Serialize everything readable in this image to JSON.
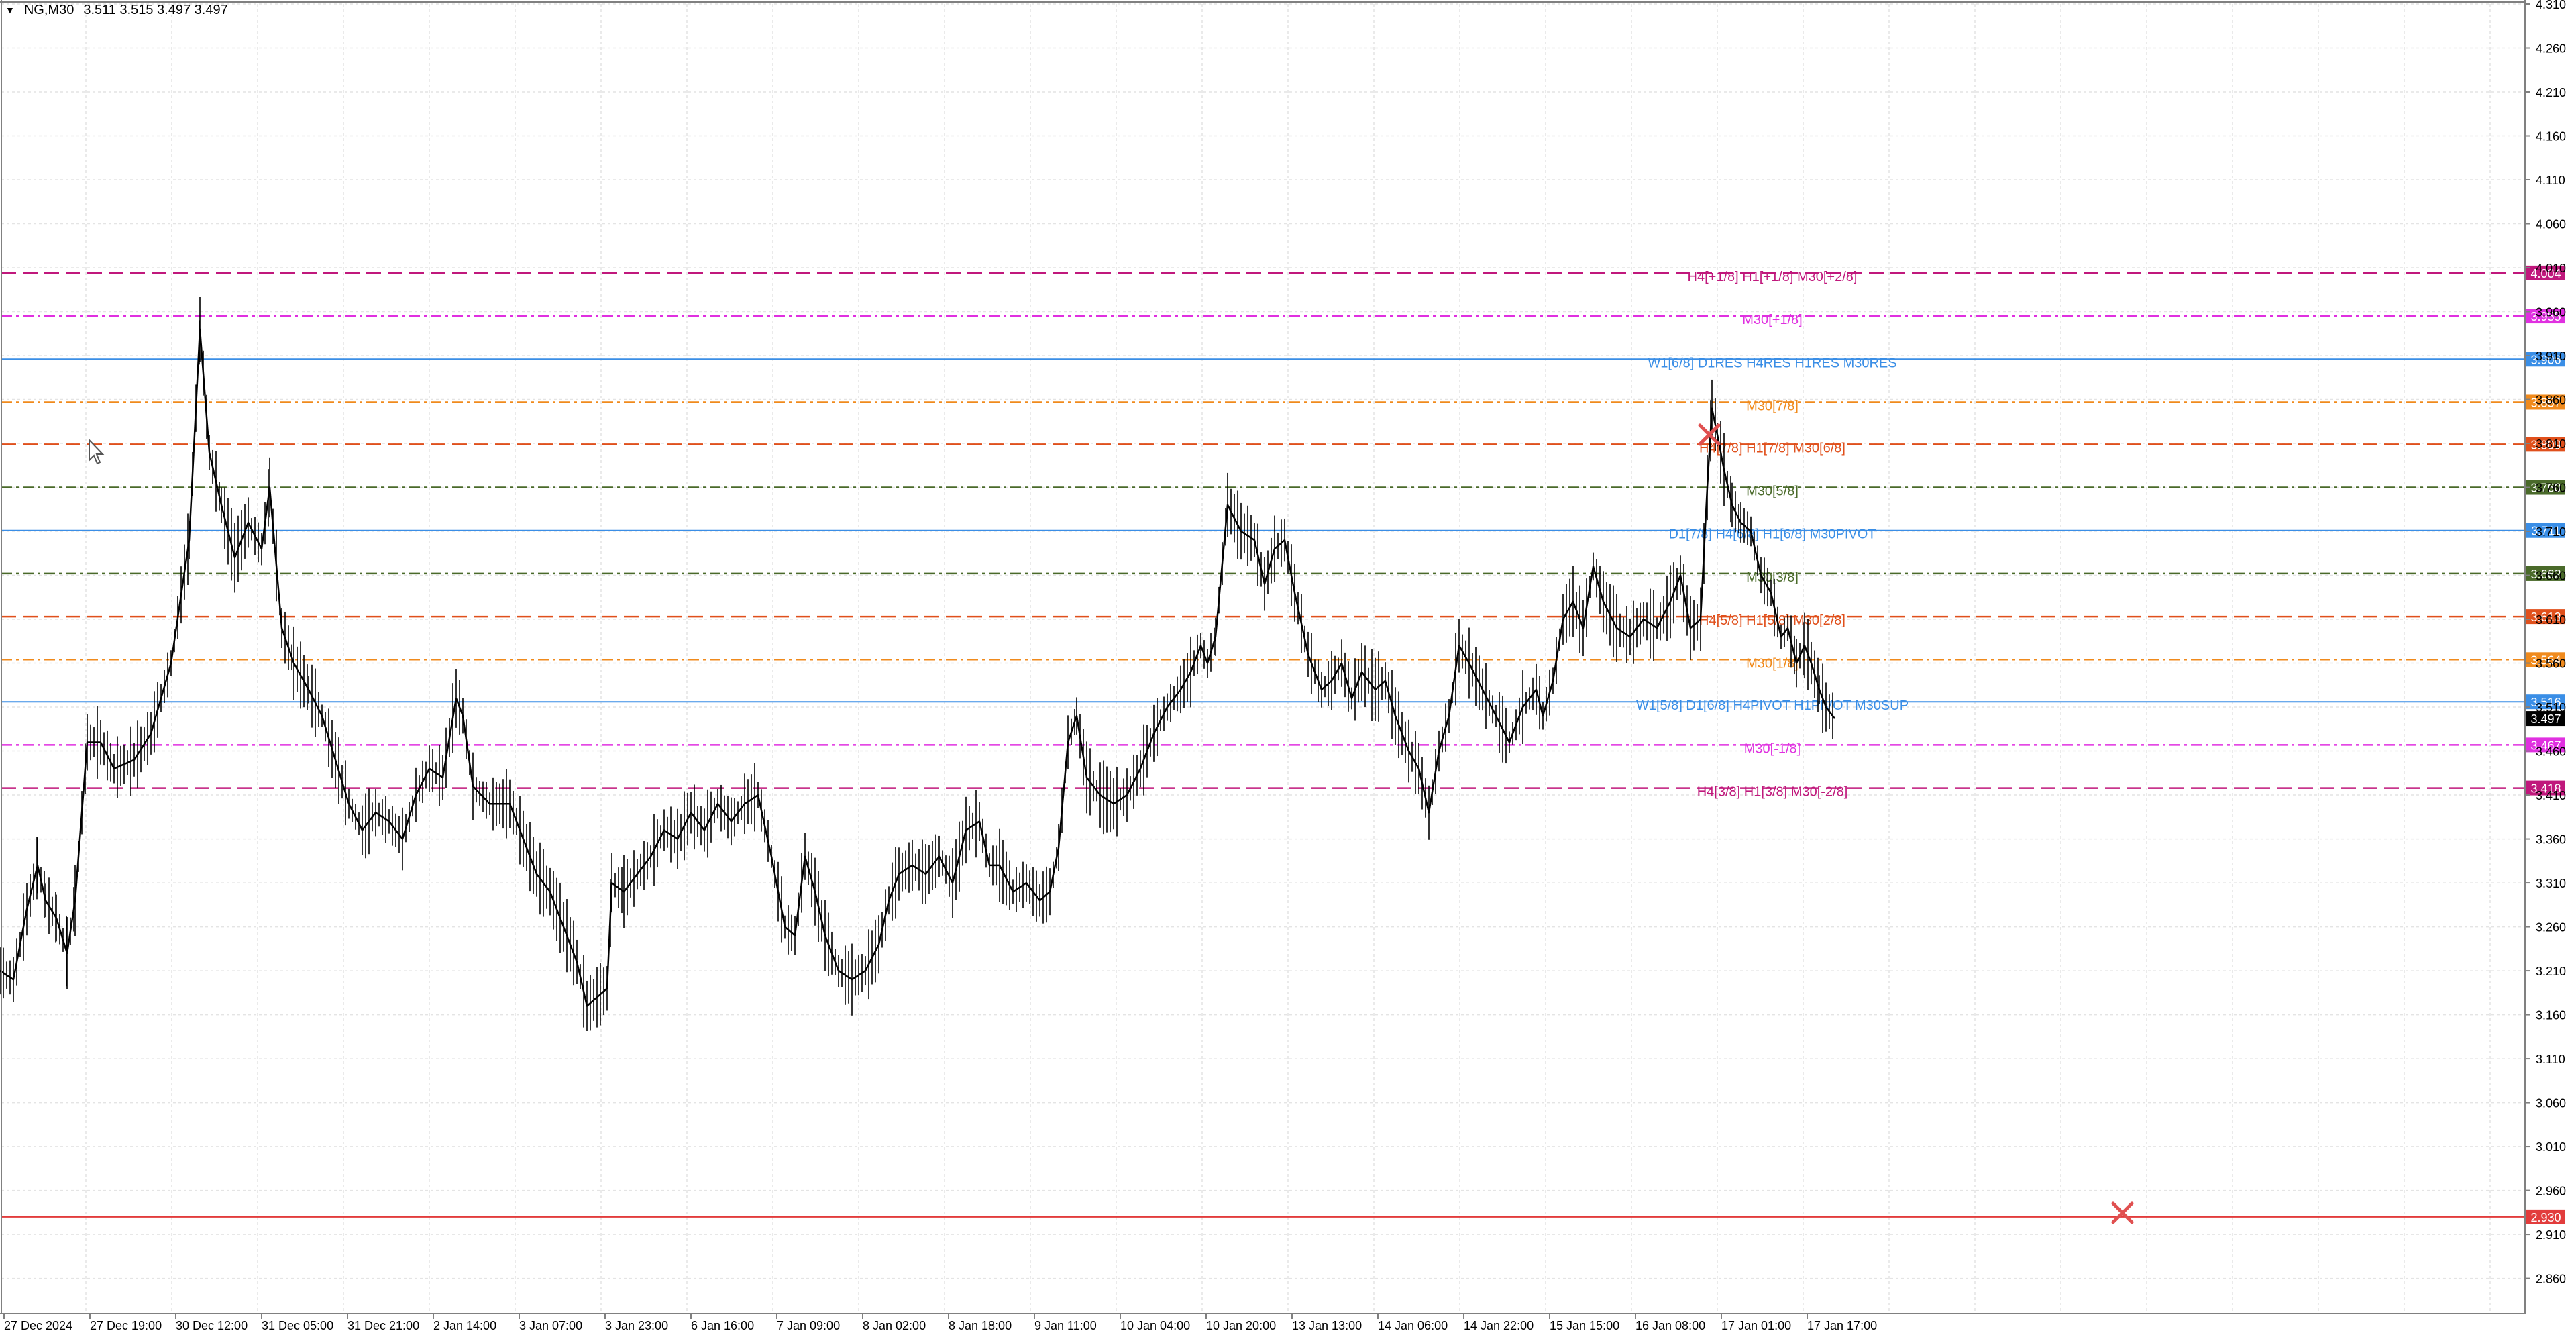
{
  "header": {
    "symbol": "NG,M30",
    "ohlc": "3.511 3.515 3.497 3.497"
  },
  "icons": {
    "dropdown": "triangle-down-icon",
    "cursor": "mouse-pointer-icon",
    "marker": "close-x-icon"
  },
  "colors": {
    "background": "#ffffff",
    "grid": "#e4e4e4",
    "candle": "#000000",
    "axis": "#808080",
    "current_price_bg": "#000000"
  },
  "chart_data": {
    "type": "candlestick",
    "symbol": "NG",
    "timeframe": "M30",
    "ylim": [
      2.82,
      4.31
    ],
    "y_ticks": [
      "4.310",
      "4.260",
      "4.210",
      "4.160",
      "4.110",
      "4.060",
      "4.010",
      "3.960",
      "3.910",
      "3.860",
      "3.810",
      "3.760",
      "3.710",
      "3.660",
      "3.610",
      "3.560",
      "3.510",
      "3.460",
      "3.410",
      "3.360",
      "3.310",
      "3.260",
      "3.210",
      "3.160",
      "3.110",
      "3.060",
      "3.010",
      "2.960",
      "2.910",
      "2.860"
    ],
    "x_ticks": [
      "27 Dec 2024",
      "27 Dec 19:00",
      "30 Dec 12:00",
      "31 Dec 05:00",
      "31 Dec 21:00",
      "2 Jan 14:00",
      "3 Jan 07:00",
      "3 Jan 23:00",
      "6 Jan 16:00",
      "7 Jan 09:00",
      "8 Jan 02:00",
      "8 Jan 18:00",
      "9 Jan 11:00",
      "10 Jan 04:00",
      "10 Jan 20:00",
      "13 Jan 13:00",
      "14 Jan 06:00",
      "14 Jan 22:00",
      "15 Jan 15:00",
      "16 Jan 08:00",
      "17 Jan 01:00",
      "17 Jan 17:00"
    ],
    "price_path": [
      [
        0,
        3.21
      ],
      [
        20,
        3.2
      ],
      [
        40,
        3.28
      ],
      [
        56,
        3.33
      ],
      [
        68,
        3.29
      ],
      [
        84,
        3.27
      ],
      [
        100,
        3.23
      ],
      [
        112,
        3.29
      ],
      [
        130,
        3.47
      ],
      [
        150,
        3.47
      ],
      [
        170,
        3.44
      ],
      [
        200,
        3.45
      ],
      [
        225,
        3.48
      ],
      [
        255,
        3.56
      ],
      [
        282,
        3.7
      ],
      [
        298,
        3.94
      ],
      [
        312,
        3.8
      ],
      [
        330,
        3.74
      ],
      [
        350,
        3.68
      ],
      [
        370,
        3.72
      ],
      [
        390,
        3.69
      ],
      [
        402,
        3.76
      ],
      [
        420,
        3.6
      ],
      [
        438,
        3.56
      ],
      [
        460,
        3.53
      ],
      [
        480,
        3.5
      ],
      [
        500,
        3.45
      ],
      [
        520,
        3.4
      ],
      [
        540,
        3.37
      ],
      [
        560,
        3.39
      ],
      [
        580,
        3.38
      ],
      [
        600,
        3.36
      ],
      [
        620,
        3.41
      ],
      [
        640,
        3.44
      ],
      [
        660,
        3.43
      ],
      [
        680,
        3.52
      ],
      [
        690,
        3.5
      ],
      [
        705,
        3.42
      ],
      [
        730,
        3.4
      ],
      [
        760,
        3.4
      ],
      [
        780,
        3.36
      ],
      [
        800,
        3.32
      ],
      [
        820,
        3.3
      ],
      [
        840,
        3.26
      ],
      [
        860,
        3.22
      ],
      [
        875,
        3.17
      ],
      [
        890,
        3.18
      ],
      [
        905,
        3.19
      ],
      [
        912,
        3.31
      ],
      [
        930,
        3.3
      ],
      [
        950,
        3.32
      ],
      [
        970,
        3.34
      ],
      [
        990,
        3.37
      ],
      [
        1010,
        3.36
      ],
      [
        1030,
        3.39
      ],
      [
        1050,
        3.37
      ],
      [
        1070,
        3.4
      ],
      [
        1090,
        3.38
      ],
      [
        1110,
        3.4
      ],
      [
        1130,
        3.41
      ],
      [
        1150,
        3.34
      ],
      [
        1170,
        3.26
      ],
      [
        1185,
        3.25
      ],
      [
        1200,
        3.34
      ],
      [
        1215,
        3.3
      ],
      [
        1230,
        3.25
      ],
      [
        1250,
        3.21
      ],
      [
        1270,
        3.2
      ],
      [
        1290,
        3.21
      ],
      [
        1310,
        3.24
      ],
      [
        1325,
        3.29
      ],
      [
        1340,
        3.32
      ],
      [
        1360,
        3.33
      ],
      [
        1380,
        3.32
      ],
      [
        1400,
        3.34
      ],
      [
        1420,
        3.31
      ],
      [
        1440,
        3.37
      ],
      [
        1460,
        3.38
      ],
      [
        1475,
        3.33
      ],
      [
        1490,
        3.33
      ],
      [
        1510,
        3.3
      ],
      [
        1530,
        3.31
      ],
      [
        1550,
        3.29
      ],
      [
        1565,
        3.3
      ],
      [
        1578,
        3.35
      ],
      [
        1592,
        3.47
      ],
      [
        1605,
        3.5
      ],
      [
        1620,
        3.43
      ],
      [
        1640,
        3.41
      ],
      [
        1660,
        3.4
      ],
      [
        1680,
        3.41
      ],
      [
        1700,
        3.44
      ],
      [
        1720,
        3.48
      ],
      [
        1740,
        3.51
      ],
      [
        1760,
        3.53
      ],
      [
        1775,
        3.55
      ],
      [
        1790,
        3.58
      ],
      [
        1800,
        3.56
      ],
      [
        1812,
        3.59
      ],
      [
        1830,
        3.74
      ],
      [
        1850,
        3.71
      ],
      [
        1870,
        3.7
      ],
      [
        1885,
        3.65
      ],
      [
        1900,
        3.69
      ],
      [
        1915,
        3.7
      ],
      [
        1930,
        3.64
      ],
      [
        1950,
        3.57
      ],
      [
        1970,
        3.53
      ],
      [
        1985,
        3.54
      ],
      [
        2000,
        3.56
      ],
      [
        2015,
        3.52
      ],
      [
        2030,
        3.55
      ],
      [
        2050,
        3.53
      ],
      [
        2065,
        3.54
      ],
      [
        2080,
        3.5
      ],
      [
        2100,
        3.46
      ],
      [
        2115,
        3.44
      ],
      [
        2130,
        3.39
      ],
      [
        2145,
        3.46
      ],
      [
        2160,
        3.5
      ],
      [
        2175,
        3.58
      ],
      [
        2190,
        3.56
      ],
      [
        2210,
        3.53
      ],
      [
        2230,
        3.5
      ],
      [
        2250,
        3.47
      ],
      [
        2270,
        3.51
      ],
      [
        2290,
        3.53
      ],
      [
        2300,
        3.5
      ],
      [
        2315,
        3.54
      ],
      [
        2330,
        3.61
      ],
      [
        2345,
        3.63
      ],
      [
        2360,
        3.6
      ],
      [
        2375,
        3.67
      ],
      [
        2390,
        3.63
      ],
      [
        2410,
        3.6
      ],
      [
        2430,
        3.59
      ],
      [
        2450,
        3.61
      ],
      [
        2470,
        3.6
      ],
      [
        2490,
        3.63
      ],
      [
        2505,
        3.66
      ],
      [
        2520,
        3.6
      ],
      [
        2535,
        3.61
      ],
      [
        2545,
        3.76
      ],
      [
        2552,
        3.85
      ],
      [
        2560,
        3.82
      ],
      [
        2570,
        3.78
      ],
      [
        2582,
        3.74
      ],
      [
        2595,
        3.72
      ],
      [
        2610,
        3.71
      ],
      [
        2625,
        3.66
      ],
      [
        2640,
        3.64
      ],
      [
        2655,
        3.59
      ],
      [
        2665,
        3.6
      ],
      [
        2678,
        3.56
      ],
      [
        2690,
        3.58
      ],
      [
        2700,
        3.56
      ],
      [
        2712,
        3.53
      ],
      [
        2722,
        3.51
      ],
      [
        2735,
        3.497
      ]
    ],
    "levels": [
      {
        "label": "H4[+1/8] H1[+1/8] M30[+2/8]",
        "price": "4.004",
        "value": 4.004,
        "color": "#c0187c",
        "style": "dashed"
      },
      {
        "label": "M30[+1/8]",
        "price": "3.955",
        "value": 3.955,
        "color": "#e030e0",
        "style": "dashdot"
      },
      {
        "label": "W1[6/8] D1RES H4RES H1RES M30RES",
        "price": "3.906",
        "value": 3.906,
        "color": "#3a8ee6",
        "style": "solid"
      },
      {
        "label": "M30[7/8]",
        "price": "3.857",
        "value": 3.857,
        "color": "#f08a1c",
        "style": "dashdot"
      },
      {
        "label": "H4[7/8] H1[7/8] M30[6/8]",
        "price": "3.809",
        "value": 3.809,
        "color": "#e0501c",
        "style": "dashed"
      },
      {
        "label": "M30[5/8]",
        "price": "3.760",
        "value": 3.76,
        "color": "#4a6a2a",
        "style": "dashdot"
      },
      {
        "label": "D1[7/8] H4[6/8] H1[6/8] M30PIVOT",
        "price": "3.711",
        "value": 3.711,
        "color": "#3a8ee6",
        "style": "solid"
      },
      {
        "label": "M30[3/8]",
        "price": "3.662",
        "value": 3.662,
        "color": "#4a6a2a",
        "style": "dashdot"
      },
      {
        "label": "H4[5/8] H1[5/8] M30[2/8]",
        "price": "3.613",
        "value": 3.613,
        "color": "#e0501c",
        "style": "dashed"
      },
      {
        "label": "M30[1/8]",
        "price": "3.564",
        "value": 3.564,
        "color": "#f08a1c",
        "style": "dashdot"
      },
      {
        "label": "W1[5/8] D1[6/8] H4PIVOT H1PIVOT M30SUP",
        "price": "3.516",
        "value": 3.516,
        "color": "#3a8ee6",
        "style": "solid"
      },
      {
        "label": "M30[-1/8]",
        "price": "3.467",
        "value": 3.467,
        "color": "#e030e0",
        "style": "dashdot"
      },
      {
        "label": "H4[3/8] H1[3/8] M30[-2/8]",
        "price": "3.418",
        "value": 3.418,
        "color": "#c0187c",
        "style": "dashed"
      }
    ],
    "current_price": {
      "price": "3.497",
      "value": 3.497,
      "color": "#000000"
    },
    "alert_line": {
      "price": "2.930",
      "value": 2.93,
      "color": "#e23c3c"
    },
    "grid": true
  }
}
